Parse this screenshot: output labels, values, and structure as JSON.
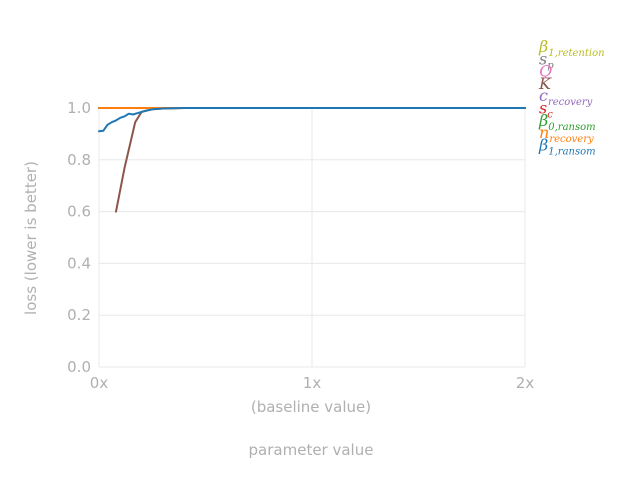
{
  "chart_data": {
    "type": "line",
    "xlabel_lines": [
      "(baseline value)",
      "parameter value"
    ],
    "ylabel": "loss (lower is better)",
    "xlim": [
      0,
      2
    ],
    "ylim": [
      0,
      1
    ],
    "x_ticks": [
      {
        "value": 0,
        "label": "0x"
      },
      {
        "value": 1,
        "label": "1x"
      },
      {
        "value": 2,
        "label": "2x"
      }
    ],
    "y_ticks": [
      {
        "value": 0.0,
        "label": "0.0"
      },
      {
        "value": 0.2,
        "label": "0.2"
      },
      {
        "value": 0.4,
        "label": "0.4"
      },
      {
        "value": 0.6,
        "label": "0.6"
      },
      {
        "value": 0.8,
        "label": "0.8"
      },
      {
        "value": 1.0,
        "label": "1.0"
      }
    ],
    "grid": true,
    "legend_position": "right",
    "series": [
      {
        "name": "β",
        "sub": "1,retention",
        "color": "#bcbd22",
        "x": [
          0,
          0.5,
          1,
          1.5,
          2
        ],
        "y": [
          1,
          1,
          1,
          1,
          1
        ]
      },
      {
        "name": "s",
        "sub": "p",
        "color": "#7f7f7f",
        "x": [
          0,
          0.5,
          1,
          1.5,
          2
        ],
        "y": [
          1,
          1,
          1,
          1,
          1
        ]
      },
      {
        "name": "Q",
        "sub": "",
        "color": "#e377c2",
        "x": [
          0,
          0.5,
          1,
          1.5,
          2
        ],
        "y": [
          1,
          1,
          1,
          1,
          1
        ]
      },
      {
        "name": "K",
        "sub": "",
        "color": "#8c564b",
        "x": [
          0.08,
          0.12,
          0.17,
          0.2,
          0.25,
          0.3,
          0.4,
          0.6,
          1.0,
          1.5,
          2.0
        ],
        "y": [
          0.6,
          0.77,
          0.945,
          0.985,
          0.995,
          0.998,
          1,
          1,
          1,
          1,
          1
        ]
      },
      {
        "name": "c",
        "sub": "recovery",
        "color": "#9467bd",
        "x": [
          0,
          0.5,
          1,
          1.5,
          2
        ],
        "y": [
          1,
          1,
          1,
          1,
          1
        ]
      },
      {
        "name": "s",
        "sub": "c",
        "color": "#d62728",
        "x": [
          0,
          0.5,
          1,
          1.5,
          2
        ],
        "y": [
          1,
          1,
          1,
          1,
          1
        ]
      },
      {
        "name": "β",
        "sub": "0,ransom",
        "color": "#2ca02c",
        "x": [
          0,
          0.5,
          1,
          1.5,
          2
        ],
        "y": [
          1,
          1,
          1,
          1,
          1
        ]
      },
      {
        "name": "n",
        "sub": "recovery",
        "color": "#ff7f0e",
        "x": [
          0,
          0.5,
          1,
          1.5,
          2
        ],
        "y": [
          1,
          1,
          1,
          1,
          1
        ]
      },
      {
        "name": "β",
        "sub": "1,ransom",
        "color": "#1f77b4",
        "x": [
          0,
          0.02,
          0.04,
          0.06,
          0.08,
          0.1,
          0.12,
          0.14,
          0.16,
          0.18,
          0.2,
          0.22,
          0.25,
          0.3,
          0.4,
          0.6,
          1.0,
          1.5,
          2.0
        ],
        "y": [
          0.91,
          0.912,
          0.935,
          0.945,
          0.952,
          0.962,
          0.968,
          0.978,
          0.975,
          0.98,
          0.985,
          0.99,
          0.995,
          0.998,
          1,
          1,
          1,
          1,
          1
        ]
      }
    ]
  }
}
